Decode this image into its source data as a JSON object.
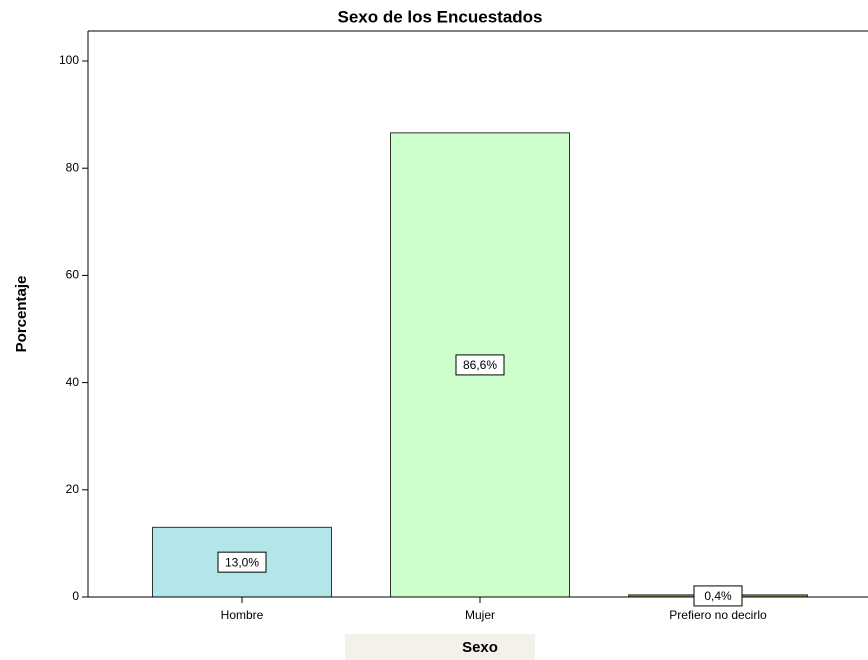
{
  "chart_data": {
    "type": "bar",
    "title": "Sexo de los Encuestados",
    "x_label": "Sexo",
    "y_label": "Porcentaje",
    "categories": [
      "Hombre",
      "Mujer",
      "Prefiero no decirlo"
    ],
    "values": [
      13.0,
      86.6,
      0.4
    ],
    "value_labels": [
      "13,0%",
      "86,6%",
      "0,4%"
    ],
    "colors": [
      "#b3e6e8",
      "#ccffcc",
      "#8c8c3c"
    ],
    "ylim": [
      0,
      105.6
    ],
    "yticks": [
      0,
      20,
      40,
      60,
      80,
      100
    ],
    "grid": false
  }
}
